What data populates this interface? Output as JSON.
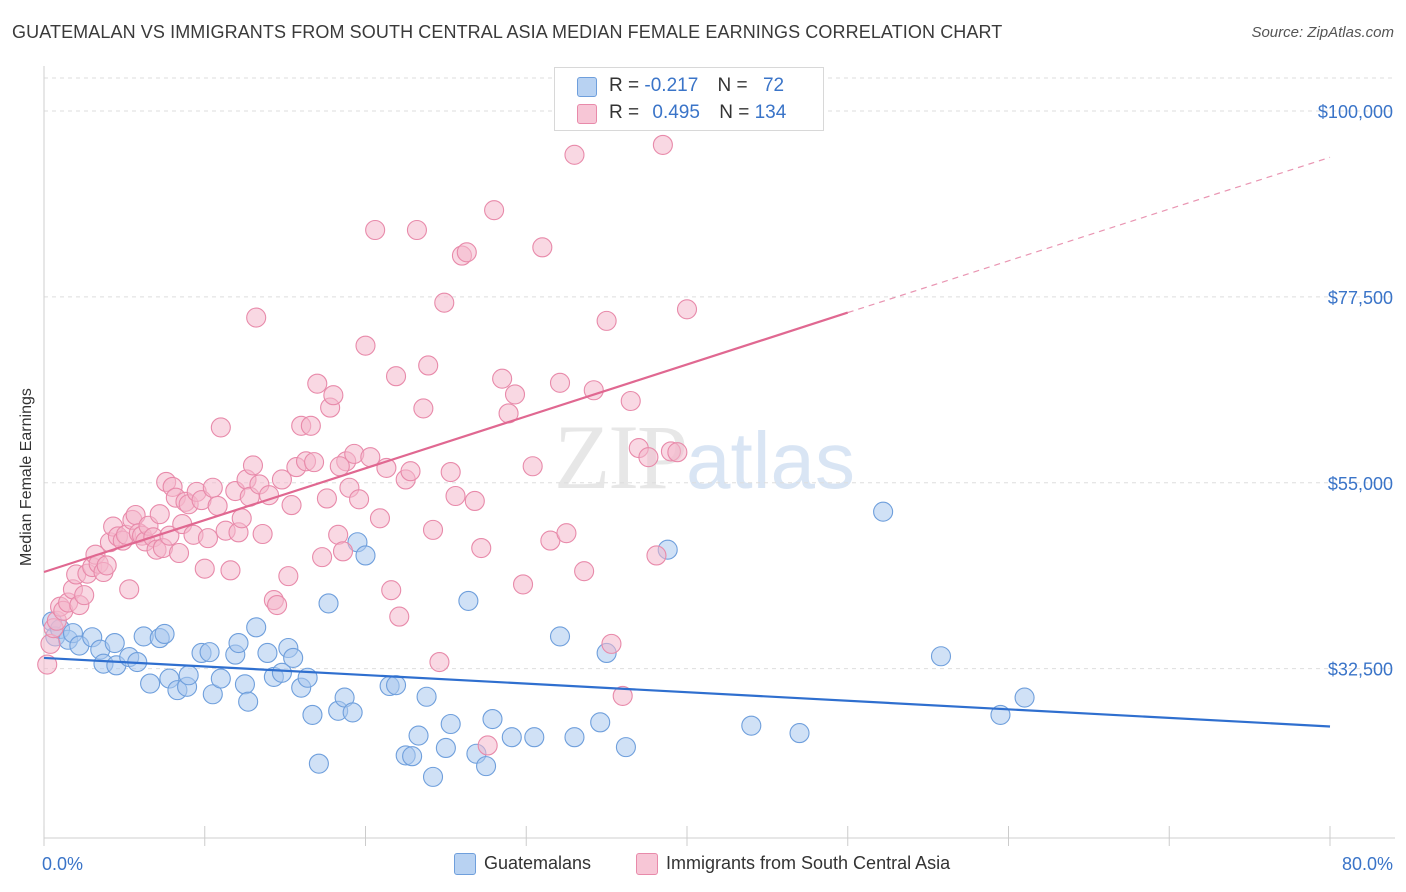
{
  "header": {
    "title": "GUATEMALAN VS IMMIGRANTS FROM SOUTH CENTRAL ASIA MEDIAN FEMALE EARNINGS CORRELATION CHART",
    "source": "Source: ZipAtlas.com"
  },
  "watermark": {
    "zip": "ZIP",
    "atlas": "atlas"
  },
  "legend": {
    "rows": [
      {
        "r_label": "R =",
        "r_value": "-0.217",
        "n_label": "N =",
        "n_value": "72"
      },
      {
        "r_label": "R =",
        "r_value": "0.495",
        "n_label": "N =",
        "n_value": "134"
      }
    ]
  },
  "bottom_legend": {
    "blue": "Guatemalans",
    "pink": "Immigrants from South Central Asia"
  },
  "colors": {
    "blue_fill": "#a9c8ef",
    "blue_stroke": "#6f9fdc",
    "blue_line": "#2f6fcf",
    "pink_fill": "#f4b8cc",
    "pink_stroke": "#e88aaa",
    "pink_line": "#e06891",
    "axis_label": "#3a74c8",
    "grid": "#dedede"
  },
  "chart_data": {
    "type": "scatter",
    "title": "GUATEMALAN VS IMMIGRANTS FROM SOUTH CENTRAL ASIA MEDIAN FEMALE EARNINGS CORRELATION CHART",
    "xlabel": "",
    "ylabel": "Median Female Earnings",
    "xlim": [
      0,
      80
    ],
    "ylim": [
      12000,
      104000
    ],
    "x_tick_labels": [
      "0.0%",
      "80.0%"
    ],
    "y_ticks": [
      32500,
      55000,
      77500,
      100000
    ],
    "y_tick_labels": [
      "$32,500",
      "$55,000",
      "$77,500",
      "$100,000"
    ],
    "grid": true,
    "legend_position": "top-center",
    "series": [
      {
        "name": "Guatemalans",
        "color": "#a9c8ef",
        "r": -0.217,
        "n": 72,
        "trend": {
          "x": [
            0,
            80
          ],
          "y": [
            33800,
            25500
          ]
        },
        "points": [
          [
            0.5,
            38200
          ],
          [
            0.7,
            36400
          ],
          [
            1.0,
            37300
          ],
          [
            1.5,
            36000
          ],
          [
            1.8,
            36800
          ],
          [
            2.2,
            35300
          ],
          [
            3.0,
            36300
          ],
          [
            3.5,
            34800
          ],
          [
            3.7,
            33100
          ],
          [
            4.4,
            35600
          ],
          [
            4.5,
            32900
          ],
          [
            5.3,
            33900
          ],
          [
            5.8,
            33300
          ],
          [
            6.2,
            36400
          ],
          [
            7.2,
            36200
          ],
          [
            7.5,
            36700
          ],
          [
            6.6,
            30700
          ],
          [
            7.8,
            31300
          ],
          [
            8.3,
            29900
          ],
          [
            8.9,
            30300
          ],
          [
            9.0,
            31700
          ],
          [
            9.8,
            34400
          ],
          [
            10.3,
            34500
          ],
          [
            10.5,
            29400
          ],
          [
            11.0,
            31300
          ],
          [
            11.9,
            34200
          ],
          [
            12.1,
            35600
          ],
          [
            12.5,
            30600
          ],
          [
            12.7,
            28500
          ],
          [
            13.2,
            37500
          ],
          [
            13.9,
            34400
          ],
          [
            14.3,
            31500
          ],
          [
            14.8,
            32000
          ],
          [
            15.2,
            35000
          ],
          [
            15.5,
            33800
          ],
          [
            16.0,
            30200
          ],
          [
            16.4,
            31400
          ],
          [
            16.7,
            26900
          ],
          [
            17.1,
            21000
          ],
          [
            17.7,
            40400
          ],
          [
            18.3,
            27400
          ],
          [
            18.7,
            29000
          ],
          [
            19.2,
            27200
          ],
          [
            19.5,
            47800
          ],
          [
            20.0,
            46200
          ],
          [
            21.5,
            30400
          ],
          [
            21.9,
            30500
          ],
          [
            22.5,
            22000
          ],
          [
            22.9,
            21900
          ],
          [
            23.3,
            24400
          ],
          [
            23.8,
            29100
          ],
          [
            24.2,
            19400
          ],
          [
            25.0,
            22900
          ],
          [
            25.3,
            25800
          ],
          [
            26.4,
            40700
          ],
          [
            26.9,
            22200
          ],
          [
            27.5,
            20700
          ],
          [
            27.9,
            26400
          ],
          [
            29.1,
            24200
          ],
          [
            30.5,
            24200
          ],
          [
            32.1,
            36400
          ],
          [
            33.0,
            24200
          ],
          [
            34.6,
            26000
          ],
          [
            35.0,
            34400
          ],
          [
            36.2,
            23000
          ],
          [
            38.8,
            46900
          ],
          [
            44.0,
            25600
          ],
          [
            47.0,
            24700
          ],
          [
            52.2,
            51500
          ],
          [
            55.8,
            34000
          ],
          [
            59.5,
            26900
          ],
          [
            61.0,
            29000
          ]
        ]
      },
      {
        "name": "Immigrants from South Central Asia",
        "color": "#f4b8cc",
        "r": 0.495,
        "n": 134,
        "trend": {
          "x": [
            0,
            50
          ],
          "y": [
            44200,
            75600
          ]
        },
        "trend_dashed": {
          "x": [
            50,
            80
          ],
          "y": [
            75600,
            94400
          ]
        },
        "points": [
          [
            0.2,
            33000
          ],
          [
            0.4,
            35500
          ],
          [
            0.6,
            37400
          ],
          [
            0.8,
            38300
          ],
          [
            1.0,
            40000
          ],
          [
            1.2,
            39500
          ],
          [
            1.5,
            40500
          ],
          [
            1.8,
            42100
          ],
          [
            2.0,
            43900
          ],
          [
            2.2,
            40200
          ],
          [
            2.5,
            41400
          ],
          [
            2.7,
            44000
          ],
          [
            3.0,
            44800
          ],
          [
            3.2,
            46300
          ],
          [
            3.4,
            45200
          ],
          [
            3.7,
            44200
          ],
          [
            3.9,
            45000
          ],
          [
            4.1,
            47800
          ],
          [
            4.3,
            49700
          ],
          [
            4.6,
            48500
          ],
          [
            4.9,
            48000
          ],
          [
            5.1,
            48700
          ],
          [
            5.3,
            42100
          ],
          [
            5.5,
            50500
          ],
          [
            5.7,
            51100
          ],
          [
            5.9,
            48900
          ],
          [
            6.1,
            48600
          ],
          [
            6.3,
            47900
          ],
          [
            6.5,
            49800
          ],
          [
            6.8,
            48400
          ],
          [
            7.0,
            46900
          ],
          [
            7.2,
            51200
          ],
          [
            7.4,
            47100
          ],
          [
            7.6,
            55100
          ],
          [
            7.8,
            48600
          ],
          [
            8.0,
            54500
          ],
          [
            8.2,
            53200
          ],
          [
            8.4,
            46500
          ],
          [
            8.6,
            50000
          ],
          [
            8.8,
            52700
          ],
          [
            9.0,
            52400
          ],
          [
            9.3,
            48700
          ],
          [
            9.5,
            53900
          ],
          [
            9.8,
            52900
          ],
          [
            10.0,
            44600
          ],
          [
            10.2,
            48300
          ],
          [
            10.5,
            54400
          ],
          [
            10.8,
            52200
          ],
          [
            11.0,
            61700
          ],
          [
            11.3,
            49200
          ],
          [
            11.6,
            44400
          ],
          [
            11.9,
            54000
          ],
          [
            12.1,
            49000
          ],
          [
            12.3,
            50700
          ],
          [
            12.6,
            55400
          ],
          [
            12.8,
            53300
          ],
          [
            13.0,
            57100
          ],
          [
            13.2,
            75000
          ],
          [
            13.4,
            54800
          ],
          [
            13.6,
            48800
          ],
          [
            14.0,
            53500
          ],
          [
            14.3,
            40800
          ],
          [
            14.5,
            40200
          ],
          [
            14.8,
            55400
          ],
          [
            15.2,
            43700
          ],
          [
            15.4,
            52300
          ],
          [
            15.7,
            56900
          ],
          [
            16.0,
            61900
          ],
          [
            16.3,
            57600
          ],
          [
            16.6,
            61900
          ],
          [
            16.8,
            57500
          ],
          [
            17.0,
            67000
          ],
          [
            17.3,
            46000
          ],
          [
            17.6,
            53100
          ],
          [
            17.8,
            64100
          ],
          [
            18.0,
            65600
          ],
          [
            18.3,
            48700
          ],
          [
            18.6,
            46700
          ],
          [
            18.8,
            57600
          ],
          [
            19.0,
            54400
          ],
          [
            19.3,
            58500
          ],
          [
            19.6,
            53000
          ],
          [
            20.0,
            71600
          ],
          [
            20.3,
            58100
          ],
          [
            20.6,
            85600
          ],
          [
            20.9,
            50700
          ],
          [
            21.3,
            56800
          ],
          [
            21.6,
            42000
          ],
          [
            21.9,
            67900
          ],
          [
            22.1,
            38800
          ],
          [
            22.5,
            55400
          ],
          [
            22.8,
            56400
          ],
          [
            23.2,
            85600
          ],
          [
            23.6,
            64000
          ],
          [
            23.9,
            69200
          ],
          [
            24.2,
            49300
          ],
          [
            24.6,
            33300
          ],
          [
            24.9,
            76800
          ],
          [
            25.3,
            56300
          ],
          [
            25.6,
            53400
          ],
          [
            26.0,
            82500
          ],
          [
            26.3,
            82900
          ],
          [
            26.8,
            52800
          ],
          [
            27.2,
            47100
          ],
          [
            27.6,
            23200
          ],
          [
            28.0,
            88000
          ],
          [
            28.5,
            67600
          ],
          [
            28.9,
            63400
          ],
          [
            29.3,
            65700
          ],
          [
            29.8,
            42700
          ],
          [
            30.4,
            57000
          ],
          [
            31.0,
            83500
          ],
          [
            31.5,
            48000
          ],
          [
            32.1,
            67100
          ],
          [
            32.5,
            48900
          ],
          [
            33.0,
            94700
          ],
          [
            33.6,
            44300
          ],
          [
            34.2,
            66200
          ],
          [
            35.0,
            74600
          ],
          [
            35.3,
            35500
          ],
          [
            36.0,
            29200
          ],
          [
            36.5,
            64900
          ],
          [
            37.0,
            59200
          ],
          [
            37.6,
            58100
          ],
          [
            38.1,
            46200
          ],
          [
            38.5,
            95900
          ],
          [
            39.0,
            58800
          ],
          [
            39.4,
            58700
          ],
          [
            40.0,
            76000
          ],
          [
            18.4,
            57000
          ]
        ]
      }
    ]
  }
}
